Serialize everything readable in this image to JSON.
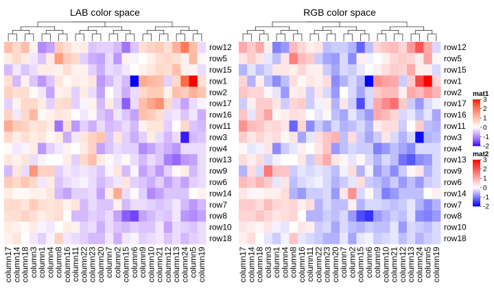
{
  "chart_data": {
    "type": "heatmap",
    "panels": [
      {
        "title": "LAB color space",
        "legend_name": "mat1",
        "colorscale": "LAB",
        "row_labels": [
          "row12",
          "row5",
          "row15",
          "row1",
          "row2",
          "row17",
          "row16",
          "row11",
          "row3",
          "row4",
          "row13",
          "row9",
          "row6",
          "row14",
          "row7",
          "row8",
          "row10",
          "row18"
        ],
        "col_labels": [
          "column17",
          "column14",
          "column18",
          "column3",
          "column1",
          "column4",
          "column8",
          "column16",
          "column11",
          "column22",
          "column23",
          "column20",
          "column7",
          "column2",
          "column15",
          "column6",
          "column9",
          "column10",
          "column21",
          "column12",
          "column13",
          "column24",
          "column5",
          "column19"
        ],
        "values": [
          [
            1.0,
            0.6,
            1.0,
            0.2,
            -1.0,
            -0.8,
            0.8,
            0.5,
            0.2,
            0.3,
            -0.5,
            -0.4,
            -0.4,
            -0.6,
            -1.2,
            -0.5,
            0.5,
            0.7,
            0.8,
            0.5,
            1.2,
            2.0,
            1.0,
            -0.3
          ],
          [
            0.3,
            0.6,
            0.3,
            -0.2,
            -0.5,
            0.3,
            1.5,
            0.8,
            0.6,
            -0.4,
            -0.7,
            -0.8,
            -0.3,
            -0.9,
            0.2,
            -0.1,
            0.0,
            0.2,
            0.5,
            0.6,
            0.5,
            0.2,
            1.1,
            0.1
          ],
          [
            -0.6,
            -0.2,
            -0.5,
            -0.3,
            0.3,
            0.3,
            0.2,
            0.5,
            0.2,
            0.2,
            -0.4,
            -0.7,
            -0.3,
            -0.4,
            -0.2,
            0.0,
            0.2,
            0.4,
            0.6,
            0.5,
            1.0,
            0.2,
            0.2,
            -0.3
          ],
          [
            0.5,
            -0.6,
            0.2,
            -0.5,
            -0.9,
            -0.5,
            0.4,
            0.1,
            0.3,
            0.2,
            0.4,
            -0.9,
            -0.6,
            -0.3,
            -0.6,
            -2.2,
            1.3,
            1.1,
            1.0,
            -0.4,
            0.6,
            2.2,
            3.2,
            0.5
          ],
          [
            0.7,
            0.5,
            0.5,
            0.1,
            -0.2,
            -0.8,
            0.2,
            0.3,
            -0.4,
            0.3,
            -0.3,
            -0.8,
            0.0,
            -0.3,
            -0.7,
            -0.3,
            0.6,
            0.8,
            0.8,
            0.2,
            1.0,
            0.8,
            1.2,
            0.9
          ],
          [
            -0.4,
            0.2,
            0.6,
            0.6,
            0.3,
            -0.4,
            0.5,
            0.6,
            -0.4,
            -0.1,
            0.2,
            -0.6,
            0.3,
            -0.4,
            -1.4,
            -0.3,
            1.0,
            1.4,
            1.7,
            0.6,
            -0.4,
            -0.8,
            -0.3,
            -0.1
          ],
          [
            0.7,
            -0.2,
            0.6,
            1.1,
            0.1,
            0.2,
            0.4,
            0.3,
            0.0,
            -0.2,
            0.1,
            -0.5,
            -0.7,
            -0.2,
            -0.5,
            -0.8,
            1.0,
            0.8,
            0.5,
            -0.3,
            -0.2,
            -0.5,
            -0.2,
            -0.7
          ],
          [
            1.3,
            0.8,
            0.7,
            0.4,
            0.5,
            0.3,
            -1.2,
            0.5,
            -0.9,
            -0.4,
            -0.7,
            -0.3,
            -0.6,
            -0.5,
            -0.3,
            -0.6,
            0.2,
            0.4,
            0.4,
            -0.4,
            0.0,
            0.6,
            -0.5,
            -0.6
          ],
          [
            0.6,
            0.3,
            0.5,
            0.3,
            0.4,
            0.1,
            0.3,
            -0.7,
            -0.2,
            0.4,
            0.7,
            0.9,
            -0.5,
            0.4,
            -0.4,
            -0.7,
            -0.4,
            0.3,
            -0.3,
            -0.6,
            -0.3,
            -1.9,
            -0.6,
            -0.5
          ],
          [
            0.1,
            -0.2,
            -0.1,
            0.3,
            -0.9,
            -0.4,
            -0.2,
            0.2,
            0.0,
            0.3,
            0.7,
            -0.8,
            -0.5,
            -0.3,
            -0.4,
            -0.4,
            -1.0,
            -0.8,
            -0.5,
            -0.7,
            -0.9,
            -0.3,
            -0.3,
            -0.3
          ],
          [
            0.4,
            0.2,
            0.4,
            -0.3,
            -0.1,
            0.0,
            0.0,
            0.3,
            -0.4,
            0.6,
            1.0,
            0.3,
            0.1,
            -0.2,
            0.1,
            -0.3,
            -0.6,
            -0.3,
            -0.5,
            -1.1,
            -1.3,
            -0.9,
            -0.8,
            -0.3
          ],
          [
            -0.6,
            0.4,
            -0.3,
            1.6,
            0.7,
            0.7,
            -0.4,
            -0.2,
            -0.3,
            -0.2,
            -0.3,
            -0.5,
            -0.1,
            0.4,
            -0.6,
            -0.1,
            -0.8,
            -0.5,
            -0.9,
            -0.4,
            0.1,
            0.3,
            -0.6,
            -0.3
          ],
          [
            0.8,
            0.6,
            0.9,
            0.6,
            -0.2,
            0.3,
            -0.5,
            -0.3,
            -0.2,
            -0.1,
            -0.3,
            -0.6,
            -0.4,
            -0.2,
            0.4,
            -0.4,
            -0.5,
            -0.7,
            -0.4,
            -0.8,
            -0.5,
            -0.8,
            -0.4,
            -0.3
          ],
          [
            0.3,
            0.1,
            0.1,
            0.2,
            0.2,
            0.4,
            -0.6,
            -0.8,
            -0.4,
            -0.4,
            -0.3,
            -0.8,
            0.3,
            1.3,
            -0.3,
            0.1,
            -0.4,
            -1.0,
            -0.8,
            -0.5,
            -0.5,
            -0.5,
            0.0,
            0.2
          ],
          [
            0.6,
            0.6,
            0.4,
            0.8,
            0.5,
            0.4,
            0.5,
            0.2,
            0.4,
            -0.6,
            -0.3,
            -0.5,
            -0.5,
            0.2,
            -0.6,
            -0.3,
            -0.3,
            -0.4,
            -0.5,
            -0.4,
            -0.2,
            -0.6,
            -0.9,
            -0.6
          ],
          [
            0.5,
            0.5,
            0.7,
            0.5,
            0.3,
            0.4,
            0.5,
            0.0,
            -0.6,
            -0.6,
            -0.4,
            -0.5,
            -0.3,
            -0.8,
            -1.4,
            -1.6,
            -0.8,
            -0.6,
            -0.4,
            -0.5,
            -0.2,
            -0.9,
            -1.0,
            -0.8
          ],
          [
            0.3,
            0.2,
            0.1,
            0.3,
            -0.1,
            -0.2,
            0.0,
            0.3,
            0.2,
            -0.4,
            -0.3,
            -0.7,
            -0.3,
            -0.5,
            -0.6,
            -0.4,
            -0.5,
            -0.5,
            -0.2,
            -0.8,
            -0.3,
            -0.4,
            -0.5,
            -0.3
          ],
          [
            0.2,
            0.4,
            0.0,
            -0.2,
            -0.4,
            -0.1,
            0.7,
            -0.2,
            -0.3,
            -0.4,
            -0.6,
            -0.6,
            -0.2,
            -0.7,
            -0.2,
            -0.1,
            -0.4,
            -0.3,
            -0.2,
            -0.5,
            -0.3,
            -0.6,
            -0.4,
            -0.3
          ]
        ]
      },
      {
        "title": "RGB color space",
        "legend_name": "mat2",
        "colorscale": "RGB",
        "row_labels": [
          "row12",
          "row5",
          "row15",
          "row1",
          "row2",
          "row17",
          "row16",
          "row11",
          "row3",
          "row4",
          "row13",
          "row9",
          "row6",
          "row14",
          "row7",
          "row8",
          "row10",
          "row18"
        ],
        "col_labels": [
          "column17",
          "column14",
          "column18",
          "column3",
          "column1",
          "column4",
          "column8",
          "column16",
          "column11",
          "column22",
          "column23",
          "column20",
          "column7",
          "column2",
          "column15",
          "column6",
          "column9",
          "column10",
          "column21",
          "column12",
          "column13",
          "column24",
          "column5",
          "column19"
        ],
        "values": [
          [
            1.0,
            0.6,
            1.0,
            0.2,
            -1.0,
            -0.8,
            0.8,
            0.5,
            0.2,
            0.3,
            -0.5,
            -0.4,
            -0.4,
            -0.6,
            -1.2,
            -0.5,
            0.5,
            0.7,
            0.8,
            0.5,
            1.2,
            2.0,
            1.0,
            -0.3
          ],
          [
            0.3,
            0.6,
            0.3,
            -0.2,
            -0.5,
            0.3,
            1.5,
            0.8,
            0.6,
            -0.4,
            -0.7,
            -0.8,
            -0.3,
            -0.9,
            0.2,
            -0.1,
            0.0,
            0.2,
            0.5,
            0.6,
            0.5,
            0.2,
            1.1,
            0.1
          ],
          [
            -0.6,
            -0.2,
            -0.5,
            -0.3,
            0.3,
            0.3,
            0.2,
            0.5,
            0.2,
            0.2,
            -0.4,
            -0.7,
            -0.3,
            -0.4,
            -0.2,
            0.0,
            0.2,
            0.4,
            0.6,
            0.5,
            1.0,
            0.2,
            0.2,
            -0.3
          ],
          [
            0.5,
            -0.6,
            0.2,
            -0.5,
            -0.9,
            -0.5,
            0.4,
            0.1,
            0.3,
            0.2,
            0.4,
            -0.9,
            -0.6,
            -0.3,
            -0.6,
            -2.2,
            1.3,
            1.1,
            1.0,
            -0.4,
            0.6,
            2.2,
            3.2,
            0.5
          ],
          [
            0.7,
            0.5,
            0.5,
            0.1,
            -0.2,
            -0.8,
            0.2,
            0.3,
            -0.4,
            0.3,
            -0.3,
            -0.8,
            0.0,
            -0.3,
            -0.7,
            -0.3,
            0.6,
            0.8,
            0.8,
            0.2,
            1.0,
            0.8,
            1.2,
            0.9
          ],
          [
            -0.4,
            0.2,
            0.6,
            0.6,
            0.3,
            -0.4,
            0.5,
            0.6,
            -0.4,
            -0.1,
            0.2,
            -0.6,
            0.3,
            -0.4,
            -1.4,
            -0.3,
            1.0,
            1.4,
            1.7,
            0.6,
            -0.4,
            -0.8,
            -0.3,
            -0.1
          ],
          [
            0.7,
            -0.2,
            0.6,
            1.1,
            0.1,
            0.2,
            0.4,
            0.3,
            0.0,
            -0.2,
            0.1,
            -0.5,
            -0.7,
            -0.2,
            -0.5,
            -0.8,
            1.0,
            0.8,
            0.5,
            -0.3,
            -0.2,
            -0.5,
            -0.2,
            -0.7
          ],
          [
            1.3,
            0.8,
            0.7,
            0.4,
            0.5,
            0.3,
            -1.2,
            0.5,
            -0.9,
            -0.4,
            -0.7,
            -0.3,
            -0.6,
            -0.5,
            -0.3,
            -0.6,
            0.2,
            0.4,
            0.4,
            -0.4,
            0.0,
            0.6,
            -0.5,
            -0.6
          ],
          [
            0.6,
            0.3,
            0.5,
            0.3,
            0.4,
            0.1,
            0.3,
            -0.7,
            -0.2,
            0.4,
            0.7,
            0.9,
            -0.5,
            0.4,
            -0.4,
            -0.7,
            -0.4,
            0.3,
            -0.3,
            -0.6,
            -0.3,
            -1.9,
            -0.6,
            -0.5
          ],
          [
            0.1,
            -0.2,
            -0.1,
            0.3,
            -0.9,
            -0.4,
            -0.2,
            0.2,
            0.0,
            0.3,
            0.7,
            -0.8,
            -0.5,
            -0.3,
            -0.4,
            -0.4,
            -1.0,
            -0.8,
            -0.5,
            -0.7,
            -0.9,
            -0.3,
            -0.3,
            -0.3
          ],
          [
            0.4,
            0.2,
            0.4,
            -0.3,
            -0.1,
            0.0,
            0.0,
            0.3,
            -0.4,
            0.6,
            1.0,
            0.3,
            0.1,
            -0.2,
            0.1,
            -0.3,
            -0.6,
            -0.3,
            -0.5,
            -1.1,
            -1.3,
            -0.9,
            -0.8,
            -0.3
          ],
          [
            -0.6,
            0.4,
            -0.3,
            1.6,
            0.7,
            0.7,
            -0.4,
            -0.2,
            -0.3,
            -0.2,
            -0.3,
            -0.5,
            -0.1,
            0.4,
            -0.6,
            -0.1,
            -0.8,
            -0.5,
            -0.9,
            -0.4,
            0.1,
            0.3,
            -0.6,
            -0.3
          ],
          [
            0.8,
            0.6,
            0.9,
            0.6,
            -0.2,
            0.3,
            -0.5,
            -0.3,
            -0.2,
            -0.1,
            -0.3,
            -0.6,
            -0.4,
            -0.2,
            0.4,
            -0.4,
            -0.5,
            -0.7,
            -0.4,
            -0.8,
            -0.5,
            -0.8,
            -0.4,
            -0.3
          ],
          [
            0.3,
            0.1,
            0.1,
            0.2,
            0.2,
            0.4,
            -0.6,
            -0.8,
            -0.4,
            -0.4,
            -0.3,
            -0.8,
            0.3,
            1.3,
            -0.3,
            0.1,
            -0.4,
            -1.0,
            -0.8,
            -0.5,
            -0.5,
            -0.5,
            0.0,
            0.2
          ],
          [
            0.6,
            0.6,
            0.4,
            0.8,
            0.5,
            0.4,
            0.5,
            0.2,
            0.4,
            -0.6,
            -0.3,
            -0.5,
            -0.5,
            0.2,
            -0.6,
            -0.3,
            -0.3,
            -0.4,
            -0.5,
            -0.4,
            -0.2,
            -0.6,
            -0.9,
            -0.6
          ],
          [
            0.5,
            0.5,
            0.7,
            0.5,
            0.3,
            0.4,
            0.5,
            0.0,
            -0.6,
            -0.6,
            -0.4,
            -0.5,
            -0.3,
            -0.8,
            -1.4,
            -1.6,
            -0.8,
            -0.6,
            -0.4,
            -0.5,
            -0.2,
            -0.9,
            -1.0,
            -0.8
          ],
          [
            0.3,
            0.2,
            0.1,
            0.3,
            -0.1,
            -0.2,
            0.0,
            0.3,
            0.2,
            -0.4,
            -0.3,
            -0.7,
            -0.3,
            -0.5,
            -0.6,
            -0.4,
            -0.5,
            -0.5,
            -0.2,
            -0.8,
            -0.3,
            -0.4,
            -0.5,
            -0.3
          ],
          [
            0.2,
            0.4,
            0.0,
            -0.2,
            -0.4,
            -0.1,
            0.7,
            -0.2,
            -0.3,
            -0.4,
            -0.6,
            -0.6,
            -0.2,
            -0.7,
            -0.2,
            -0.1,
            -0.4,
            -0.3,
            -0.2,
            -0.5,
            -0.3,
            -0.6,
            -0.4,
            -0.3
          ]
        ]
      }
    ],
    "color_range": [
      -2,
      3
    ],
    "colors": {
      "low": "#0000ff",
      "mid": "#ffffff",
      "high": "#ff0000"
    },
    "legends": [
      {
        "name": "mat1",
        "ticks": [
          "3",
          "2",
          "1",
          "0",
          "-1",
          "-2"
        ]
      },
      {
        "name": "mat2",
        "ticks": [
          "3",
          "2",
          "1",
          "0",
          "-1",
          "-2"
        ]
      }
    ],
    "column_dendrogram": true,
    "grid": false
  }
}
